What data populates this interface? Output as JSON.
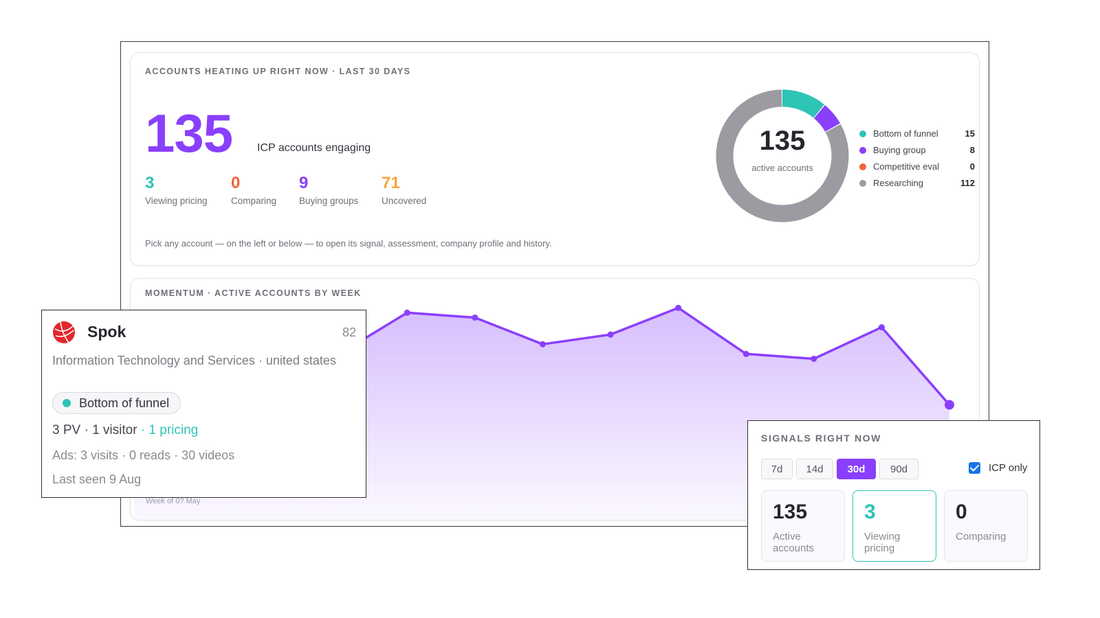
{
  "overview": {
    "title": "ACCOUNTS HEATING UP RIGHT NOW · LAST 30 DAYS",
    "total": "135",
    "total_label": "ICP accounts engaging",
    "stats": [
      {
        "value": "3",
        "label": "Viewing pricing",
        "color": "#2ec4b6"
      },
      {
        "value": "0",
        "label": "Comparing",
        "color": "#f4623a"
      },
      {
        "value": "9",
        "label": "Buying groups",
        "color": "#8a3ffc"
      },
      {
        "value": "71",
        "label": "Uncovered",
        "color": "#f7a541"
      }
    ],
    "hint": "Pick any account — on the left or below — to open its signal, assessment, company profile and history.",
    "donut": {
      "center_value": "135",
      "center_label": "active accounts",
      "segments": [
        {
          "label": "Bottom of funnel",
          "value": 15,
          "color": "#2ec4b6"
        },
        {
          "label": "Buying group",
          "value": 8,
          "color": "#8a3ffc"
        },
        {
          "label": "Competitive eval",
          "value": 0,
          "color": "#f4623a"
        },
        {
          "label": "Researching",
          "value": 112,
          "color": "#9b9ba1"
        }
      ]
    }
  },
  "momentum": {
    "title": "MOMENTUM · ACTIVE ACCOUNTS BY WEEK",
    "axis_label": "Week of 0? May"
  },
  "chart_data": {
    "type": "area",
    "series": [
      {
        "values": [
          58,
          69,
          86,
          84,
          73,
          77,
          88,
          69,
          67,
          80,
          48
        ]
      }
    ],
    "ylim": [
      0,
      100
    ],
    "color": "#8a3ffc"
  },
  "spok": {
    "name": "Spok",
    "score": "82",
    "industry": "Information Technology and Services · united states",
    "stage": "Bottom of funnel",
    "activity": "3 PV · 1 visitor",
    "pricing": " · 1 pricing",
    "ads": "Ads: 3 visits · 0 reads · 30 videos",
    "last_seen": "Last seen 9 Aug"
  },
  "signals": {
    "title": "SIGNALS RIGHT NOW",
    "ranges": [
      "7d",
      "14d",
      "30d",
      "90d"
    ],
    "active_range": "30d",
    "icp_only_label": "ICP only",
    "icp_only_checked": true,
    "tiles": [
      {
        "value": "135",
        "label": "Active accounts"
      },
      {
        "value": "3",
        "label": "Viewing pricing"
      },
      {
        "value": "0",
        "label": "Comparing"
      }
    ]
  }
}
